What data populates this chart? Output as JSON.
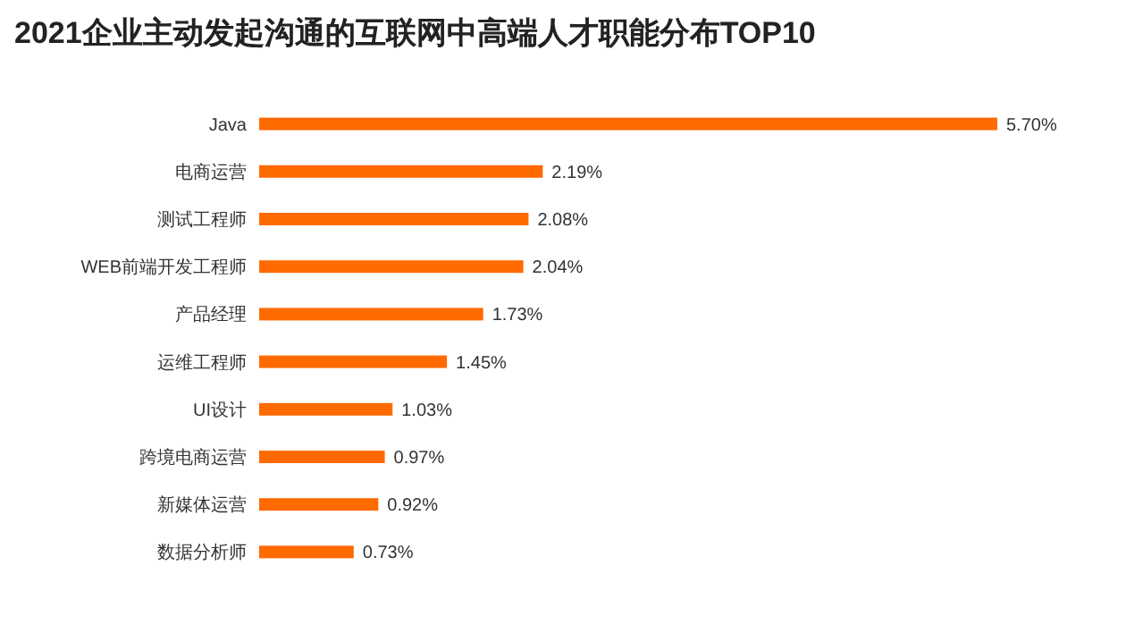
{
  "chart_data": {
    "type": "bar",
    "orientation": "horizontal",
    "title": "2021企业主动发起沟通的互联网中高端人才职能分布TOP10",
    "categories": [
      "Java",
      "电商运营",
      "测试工程师",
      "WEB前端开发工程师",
      "产品经理",
      "运维工程师",
      "UI设计",
      "跨境电商运营",
      "新媒体运营",
      "数据分析师"
    ],
    "values": [
      5.7,
      2.19,
      2.08,
      2.04,
      1.73,
      1.45,
      1.03,
      0.97,
      0.92,
      0.73
    ],
    "value_labels": [
      "5.70%",
      "2.19%",
      "2.08%",
      "2.04%",
      "1.73%",
      "1.45%",
      "1.03%",
      "0.97%",
      "0.92%",
      "0.73%"
    ],
    "color": "#ff6a00"
  }
}
